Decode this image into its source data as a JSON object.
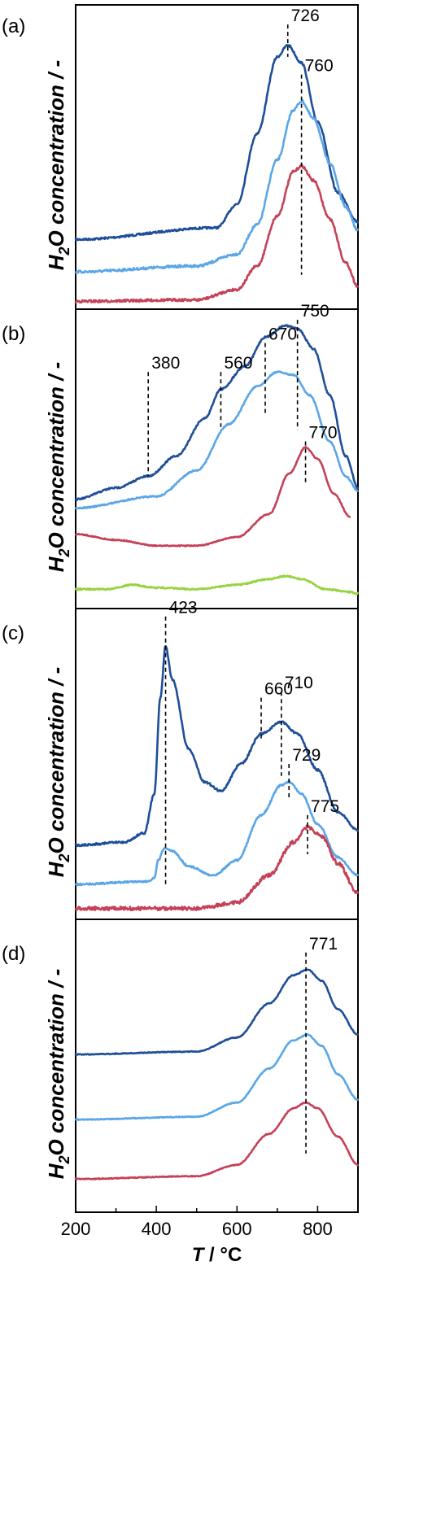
{
  "chart_data": {
    "type": "line",
    "xlabel_italic": "T",
    "xlabel_rest": " / °C",
    "ylabel": "H2O concentration / -",
    "xlim": [
      200,
      900
    ],
    "xticks": [
      200,
      400,
      600,
      800
    ],
    "colors": {
      "dark_blue": "#1f4e99",
      "light_blue": "#5aa6e6",
      "red": "#c44157",
      "green": "#97d33f"
    },
    "panels": [
      {
        "label": "(a)",
        "series": [
          {
            "color": "dark_blue",
            "noise": 1.2,
            "points": [
              [
                200,
                0.22
              ],
              [
                550,
                0.26
              ],
              [
                600,
                0.34
              ],
              [
                650,
                0.58
              ],
              [
                700,
                0.84
              ],
              [
                726,
                0.88
              ],
              [
                760,
                0.82
              ],
              [
                800,
                0.62
              ],
              [
                850,
                0.38
              ],
              [
                900,
                0.28
              ]
            ]
          },
          {
            "color": "light_blue",
            "noise": 1.5,
            "points": [
              [
                200,
                0.11
              ],
              [
                500,
                0.13
              ],
              [
                600,
                0.17
              ],
              [
                650,
                0.27
              ],
              [
                700,
                0.49
              ],
              [
                740,
                0.66
              ],
              [
                760,
                0.69
              ],
              [
                790,
                0.63
              ],
              [
                830,
                0.48
              ],
              [
                870,
                0.33
              ],
              [
                900,
                0.25
              ]
            ]
          },
          {
            "color": "red",
            "noise": 1.5,
            "points": [
              [
                200,
                0.01
              ],
              [
                500,
                0.015
              ],
              [
                600,
                0.05
              ],
              [
                650,
                0.13
              ],
              [
                700,
                0.3
              ],
              [
                740,
                0.45
              ],
              [
                760,
                0.47
              ],
              [
                790,
                0.42
              ],
              [
                830,
                0.29
              ],
              [
                870,
                0.14
              ],
              [
                900,
                0.06
              ]
            ]
          }
        ],
        "peaks": [
          {
            "x": 726,
            "label": "726",
            "y_top": 0.95,
            "y_bottom": 0.84
          },
          {
            "x": 760,
            "label": "760",
            "y_top": 0.78,
            "y_bottom": 0.1
          }
        ]
      },
      {
        "label": "(b)",
        "series": [
          {
            "color": "dark_blue",
            "noise": 1.0,
            "points": [
              [
                200,
                0.36
              ],
              [
                300,
                0.4
              ],
              [
                380,
                0.44
              ],
              [
                450,
                0.51
              ],
              [
                520,
                0.64
              ],
              [
                560,
                0.74
              ],
              [
                620,
                0.82
              ],
              [
                670,
                0.92
              ],
              [
                720,
                0.96
              ],
              [
                750,
                0.95
              ],
              [
                790,
                0.88
              ],
              [
                830,
                0.72
              ],
              [
                870,
                0.51
              ],
              [
                900,
                0.4
              ]
            ]
          },
          {
            "color": "light_blue",
            "noise": 0.8,
            "points": [
              [
                200,
                0.33
              ],
              [
                400,
                0.37
              ],
              [
                500,
                0.46
              ],
              [
                580,
                0.62
              ],
              [
                650,
                0.75
              ],
              [
                700,
                0.8
              ],
              [
                740,
                0.79
              ],
              [
                780,
                0.72
              ],
              [
                830,
                0.56
              ],
              [
                870,
                0.44
              ],
              [
                900,
                0.39
              ]
            ]
          },
          {
            "color": "red",
            "noise": 0.6,
            "points": [
              [
                200,
                0.24
              ],
              [
                300,
                0.22
              ],
              [
                400,
                0.2
              ],
              [
                500,
                0.2
              ],
              [
                600,
                0.23
              ],
              [
                680,
                0.31
              ],
              [
                730,
                0.45
              ],
              [
                770,
                0.54
              ],
              [
                800,
                0.5
              ],
              [
                840,
                0.38
              ],
              [
                880,
                0.3
              ]
            ]
          },
          {
            "color": "green",
            "noise": 0.8,
            "points": [
              [
                200,
                0.05
              ],
              [
                280,
                0.05
              ],
              [
                340,
                0.065
              ],
              [
                400,
                0.055
              ],
              [
                500,
                0.05
              ],
              [
                600,
                0.065
              ],
              [
                680,
                0.085
              ],
              [
                720,
                0.095
              ],
              [
                760,
                0.085
              ],
              [
                820,
                0.05
              ],
              [
                880,
                0.04
              ],
              [
                900,
                0.035
              ]
            ]
          }
        ],
        "peaks": [
          {
            "x": 380,
            "label": "380",
            "y_top": 0.8,
            "y_bottom": 0.44
          },
          {
            "x": 560,
            "label": "560",
            "y_top": 0.8,
            "y_bottom": 0.61
          },
          {
            "x": 670,
            "label": "670",
            "y_top": 0.9,
            "y_bottom": 0.65
          },
          {
            "x": 750,
            "label": "750",
            "y_top": 0.98,
            "y_bottom": 0.6
          },
          {
            "x": 770,
            "label": "770",
            "y_top": 0.56,
            "y_bottom": 0.41
          }
        ]
      },
      {
        "label": "(c)",
        "series": [
          {
            "color": "dark_blue",
            "noise": 1.2,
            "points": [
              [
                200,
                0.23
              ],
              [
                320,
                0.24
              ],
              [
                370,
                0.27
              ],
              [
                395,
                0.4
              ],
              [
                410,
                0.72
              ],
              [
                423,
                0.89
              ],
              [
                440,
                0.78
              ],
              [
                480,
                0.55
              ],
              [
                520,
                0.44
              ],
              [
                560,
                0.41
              ],
              [
                610,
                0.5
              ],
              [
                660,
                0.6
              ],
              [
                710,
                0.64
              ],
              [
                750,
                0.6
              ],
              [
                800,
                0.48
              ],
              [
                850,
                0.34
              ],
              [
                900,
                0.28
              ]
            ]
          },
          {
            "color": "light_blue",
            "noise": 1.0,
            "points": [
              [
                200,
                0.1
              ],
              [
                380,
                0.11
              ],
              [
                395,
                0.12
              ],
              [
                405,
                0.18
              ],
              [
                420,
                0.22
              ],
              [
                440,
                0.21
              ],
              [
                480,
                0.16
              ],
              [
                540,
                0.13
              ],
              [
                600,
                0.18
              ],
              [
                660,
                0.33
              ],
              [
                710,
                0.43
              ],
              [
                729,
                0.44
              ],
              [
                760,
                0.4
              ],
              [
                800,
                0.3
              ],
              [
                850,
                0.19
              ],
              [
                900,
                0.13
              ]
            ]
          },
          {
            "color": "red",
            "noise": 2.2,
            "points": [
              [
                200,
                0.02
              ],
              [
                500,
                0.02
              ],
              [
                600,
                0.04
              ],
              [
                680,
                0.13
              ],
              [
                740,
                0.24
              ],
              [
                775,
                0.29
              ],
              [
                810,
                0.26
              ],
              [
                850,
                0.17
              ],
              [
                900,
                0.07
              ]
            ]
          }
        ],
        "peaks": [
          {
            "x": 423,
            "label": "423",
            "y_top": 0.99,
            "y_bottom": 0.1
          },
          {
            "x": 660,
            "label": "660",
            "y_top": 0.72,
            "y_bottom": 0.58
          },
          {
            "x": 710,
            "label": "710",
            "y_top": 0.74,
            "y_bottom": 0.46
          },
          {
            "x": 729,
            "label": "729",
            "y_top": 0.5,
            "y_bottom": 0.38
          },
          {
            "x": 775,
            "label": "775",
            "y_top": 0.33,
            "y_bottom": 0.2
          }
        ]
      },
      {
        "label": "(d)",
        "series": [
          {
            "color": "dark_blue",
            "noise": 0.5,
            "points": [
              [
                200,
                0.54
              ],
              [
                500,
                0.55
              ],
              [
                600,
                0.6
              ],
              [
                680,
                0.72
              ],
              [
                740,
                0.82
              ],
              [
                775,
                0.84
              ],
              [
                810,
                0.8
              ],
              [
                850,
                0.7
              ],
              [
                900,
                0.61
              ]
            ]
          },
          {
            "color": "light_blue",
            "noise": 0.5,
            "points": [
              [
                200,
                0.31
              ],
              [
                500,
                0.32
              ],
              [
                600,
                0.37
              ],
              [
                680,
                0.49
              ],
              [
                740,
                0.59
              ],
              [
                775,
                0.61
              ],
              [
                810,
                0.57
              ],
              [
                850,
                0.47
              ],
              [
                900,
                0.38
              ]
            ]
          },
          {
            "color": "red",
            "noise": 0.5,
            "points": [
              [
                200,
                0.1
              ],
              [
                500,
                0.11
              ],
              [
                600,
                0.15
              ],
              [
                680,
                0.26
              ],
              [
                740,
                0.35
              ],
              [
                770,
                0.37
              ],
              [
                800,
                0.35
              ],
              [
                850,
                0.25
              ],
              [
                900,
                0.15
              ]
            ]
          }
        ],
        "peaks": [
          {
            "x": 771,
            "label": "771",
            "y_top": 0.9,
            "y_bottom": 0.19
          }
        ]
      }
    ]
  }
}
